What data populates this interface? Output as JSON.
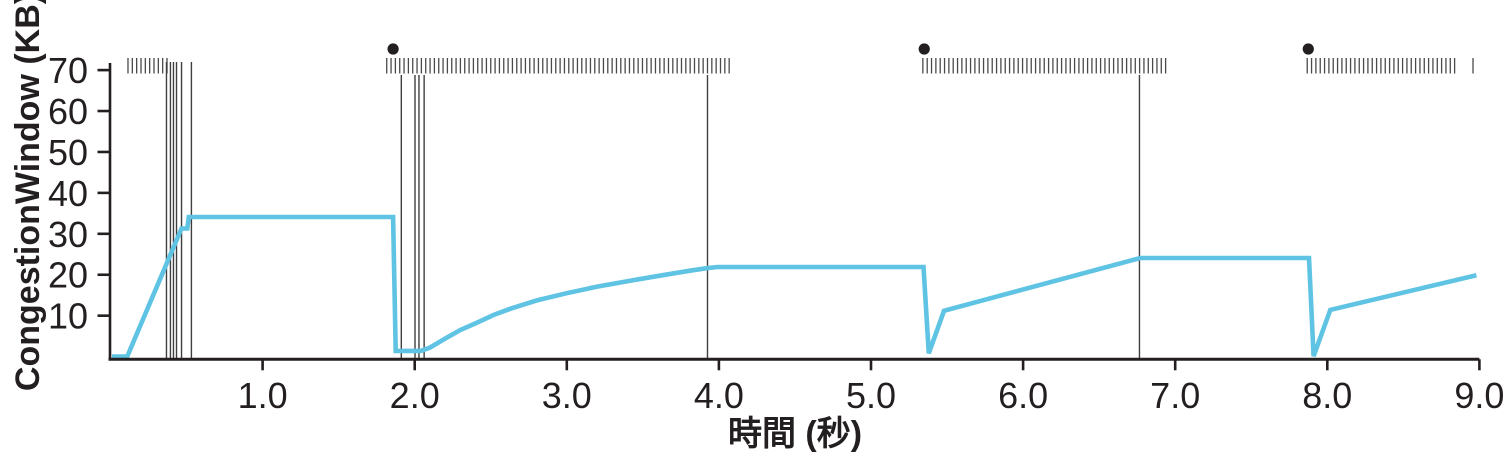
{
  "page": {
    "background": "#ffffff"
  },
  "chart_data": {
    "type": "line",
    "title": "",
    "xlabel": "時間 (秒)",
    "ylabel": "CongestionWindow (KB)",
    "xlim": [
      0,
      9.0
    ],
    "ylim": [
      0,
      70
    ],
    "grid": "off",
    "legend": "none",
    "xticks": [
      1,
      2,
      3,
      4,
      5,
      6,
      7,
      8,
      9
    ],
    "xtick_labels": [
      "1.0",
      "2.0",
      "3.0",
      "4.0",
      "5.0",
      "6.0",
      "7.0",
      "8.0",
      "9.0"
    ],
    "yticks": [
      10,
      20,
      30,
      40,
      50,
      60,
      70
    ],
    "ytick_labels": [
      "10",
      "20",
      "30",
      "40",
      "50",
      "60",
      "70"
    ],
    "axis_color": "#231f20",
    "series": [
      {
        "name": "congestion-window",
        "color": "#5FC3E3",
        "stroke_width": 4.6,
        "points": [
          [
            0.01,
            0
          ],
          [
            0.11,
            0
          ],
          [
            0.467,
            31.3
          ],
          [
            0.505,
            31.3
          ],
          [
            0.515,
            34.1
          ],
          [
            1.858,
            34.1
          ],
          [
            1.875,
            1.4
          ],
          [
            2.04,
            1.4
          ],
          [
            2.1,
            2.2
          ],
          [
            2.2,
            4.4
          ],
          [
            2.3,
            6.5
          ],
          [
            2.41,
            8.3
          ],
          [
            2.52,
            10.2
          ],
          [
            2.63,
            11.7
          ],
          [
            2.8,
            13.7
          ],
          [
            3.0,
            15.5
          ],
          [
            3.2,
            17.1
          ],
          [
            3.44,
            18.7
          ],
          [
            3.65,
            20.0
          ],
          [
            3.81,
            21.0
          ],
          [
            3.92,
            21.6
          ],
          [
            3.99,
            21.9
          ],
          [
            5.345,
            21.9
          ],
          [
            5.38,
            0.8
          ],
          [
            5.48,
            11.2
          ],
          [
            6.77,
            24.1
          ],
          [
            7.88,
            24.1
          ],
          [
            7.91,
            0.1
          ],
          [
            8.02,
            11.4
          ],
          [
            8.98,
            19.9
          ]
        ]
      }
    ],
    "timeout_dots": {
      "color": "#231f20",
      "t": [
        1.858,
        5.35,
        7.875
      ]
    },
    "retransmit_lines": {
      "color": "#3f3f3f",
      "slow_start_cluster_t": [
        0.368,
        0.394,
        0.414,
        0.434,
        0.467,
        0.532
      ],
      "second_cluster_t": [
        1.912,
        2.002,
        2.028,
        2.062
      ],
      "single_t": [
        3.925,
        6.765
      ]
    },
    "transmission_marks": {
      "color": "#4a4a4a",
      "spacing_t": 0.0285,
      "rows": [
        {
          "t_start": 0.115,
          "t_end": 0.375
        },
        {
          "t_start": 1.816,
          "t_end": 4.085
        },
        {
          "t_start": 5.341,
          "t_end": 6.947
        },
        {
          "t_start": 7.868,
          "t_end": 8.861
        },
        {
          "t_start": 8.958,
          "t_end": 8.958
        }
      ]
    }
  }
}
